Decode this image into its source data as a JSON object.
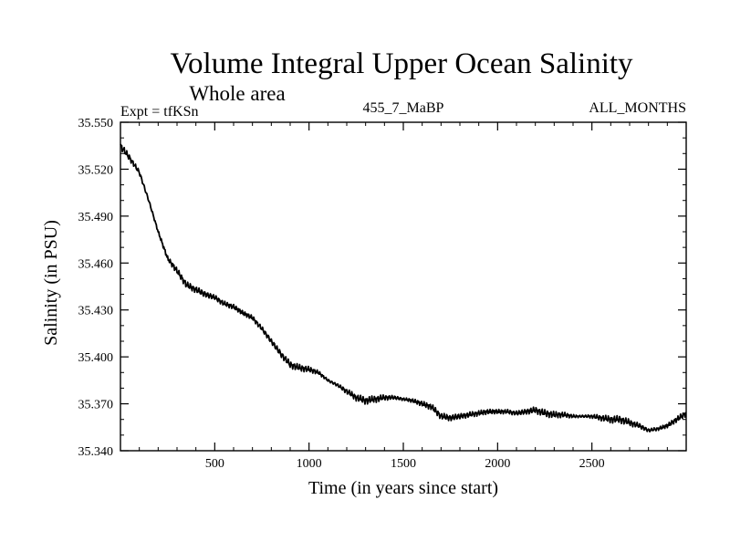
{
  "chart_data": {
    "type": "line",
    "title": "Volume Integral Upper Ocean Salinity",
    "subtitle": "Whole area",
    "expt_label": "Expt = tfKSn",
    "center_label": "455_7_MaBP",
    "right_label": "ALL_MONTHS",
    "xlabel": "Time (in years since start)",
    "ylabel": "Salinity (in PSU)",
    "xlim": [
      0,
      3000
    ],
    "ylim": [
      35.34,
      35.55
    ],
    "xticks": [
      500,
      1000,
      1500,
      2000,
      2500
    ],
    "xtick_labels": [
      "500",
      "1000",
      "1500",
      "2000",
      "2500"
    ],
    "yticks": [
      35.34,
      35.37,
      35.4,
      35.43,
      35.46,
      35.49,
      35.52,
      35.55
    ],
    "ytick_labels": [
      "35.340",
      "35.370",
      "35.400",
      "35.430",
      "35.460",
      "35.490",
      "35.520",
      "35.550"
    ],
    "grid": false,
    "series": [
      {
        "name": "Salinity",
        "color": "#000000",
        "x": [
          0,
          50,
          100,
          150,
          200,
          250,
          300,
          350,
          400,
          450,
          500,
          550,
          600,
          650,
          700,
          750,
          800,
          850,
          900,
          950,
          1000,
          1050,
          1100,
          1150,
          1200,
          1250,
          1300,
          1350,
          1400,
          1450,
          1500,
          1550,
          1600,
          1650,
          1700,
          1750,
          1800,
          1850,
          1900,
          1950,
          2000,
          2050,
          2100,
          2150,
          2200,
          2250,
          2300,
          2350,
          2400,
          2450,
          2500,
          2550,
          2600,
          2650,
          2700,
          2750,
          2800,
          2850,
          2900,
          2950,
          3000
        ],
        "values": [
          35.535,
          35.527,
          35.518,
          35.5,
          35.48,
          35.463,
          35.455,
          35.446,
          35.443,
          35.44,
          35.438,
          35.434,
          35.432,
          35.428,
          35.425,
          35.418,
          35.41,
          35.402,
          35.395,
          35.393,
          35.392,
          35.39,
          35.385,
          35.382,
          35.378,
          35.374,
          35.372,
          35.373,
          35.374,
          35.374,
          35.373,
          35.372,
          35.37,
          35.368,
          35.362,
          35.361,
          35.362,
          35.363,
          35.364,
          35.365,
          35.365,
          35.365,
          35.364,
          35.365,
          35.366,
          35.364,
          35.363,
          35.363,
          35.362,
          35.362,
          35.362,
          35.361,
          35.36,
          35.36,
          35.358,
          35.356,
          35.353,
          35.354,
          35.356,
          35.36,
          35.364
        ]
      }
    ]
  }
}
